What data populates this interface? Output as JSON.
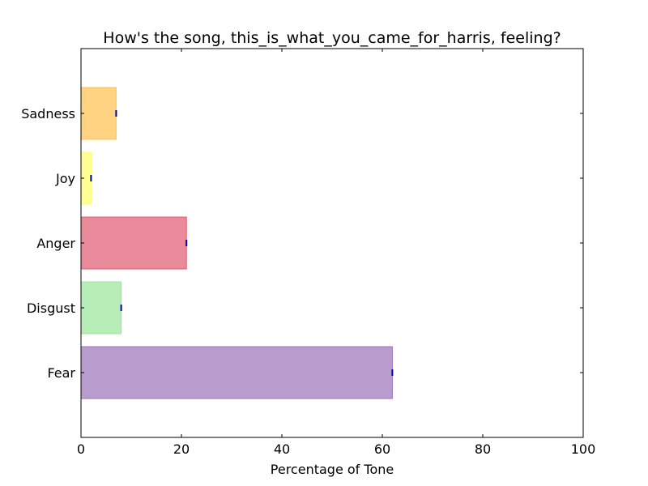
{
  "chart_data": {
    "type": "bar",
    "orientation": "horizontal",
    "title": "How's the song, this_is_what_you_came_for_harris, feeling?",
    "xlabel": "Percentage of Tone",
    "ylabel": "",
    "xlim": [
      0,
      100
    ],
    "xticks": [
      0,
      20,
      40,
      60,
      80,
      100
    ],
    "grid": false,
    "categories": [
      "Fear",
      "Disgust",
      "Anger",
      "Joy",
      "Sadness"
    ],
    "values": [
      62,
      8,
      21,
      2,
      7
    ],
    "colors": [
      "#9b72b9",
      "#98e698",
      "#e05a71",
      "#ffff66",
      "#ffc04d"
    ],
    "error_marker_color": "#0000aa"
  }
}
